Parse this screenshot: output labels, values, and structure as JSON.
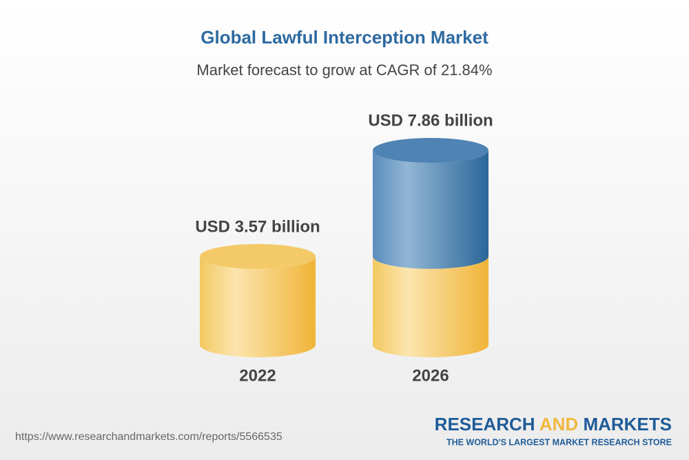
{
  "chart_data": {
    "type": "cylinder",
    "title": "Global Lawful Interception Market",
    "subtitle": "Market forecast to grow at CAGR of 21.84%",
    "categories": [
      "2022",
      "2026"
    ],
    "values": [
      3.57,
      7.86
    ],
    "value_labels": [
      "USD 3.57 billion",
      "USD 7.86 billion"
    ],
    "colors": [
      "#f3c45a",
      "#3f78ad"
    ]
  },
  "footer": {
    "url": "https://www.researchandmarkets.com/reports/5566535",
    "brand": [
      "RESEARCH",
      "AND",
      "MARKETS"
    ],
    "tagline": "THE WORLD'S LARGEST MARKET RESEARCH STORE"
  }
}
